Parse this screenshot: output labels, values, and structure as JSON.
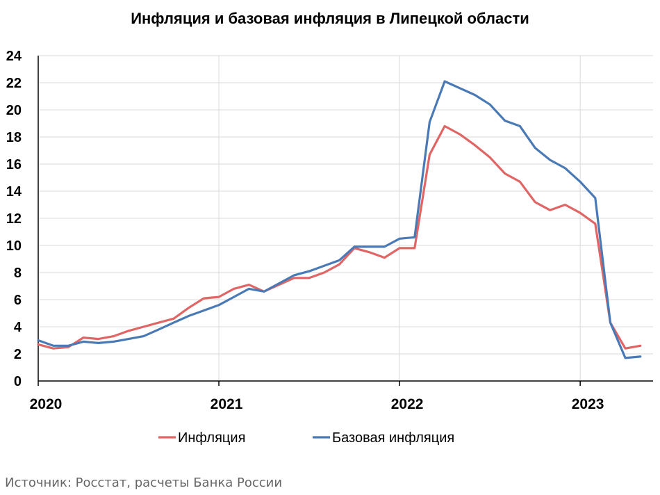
{
  "chart_data": {
    "type": "line",
    "title": "Инфляция и базовая инфляция в Липецкой области",
    "xlabel": "",
    "ylabel": "",
    "ylim": [
      0,
      24
    ],
    "yticks": [
      "0",
      "2",
      "4",
      "6",
      "8",
      "10",
      "12",
      "14",
      "16",
      "18",
      "20",
      "22",
      "24"
    ],
    "x_tick_labels": [
      "2020",
      "2021",
      "2022",
      "2023"
    ],
    "x": [
      "2020-01",
      "2020-02",
      "2020-03",
      "2020-04",
      "2020-05",
      "2020-06",
      "2020-07",
      "2020-08",
      "2020-09",
      "2020-10",
      "2020-11",
      "2020-12",
      "2021-01",
      "2021-02",
      "2021-03",
      "2021-04",
      "2021-05",
      "2021-06",
      "2021-07",
      "2021-08",
      "2021-09",
      "2021-10",
      "2021-11",
      "2021-12",
      "2022-01",
      "2022-02",
      "2022-03",
      "2022-04",
      "2022-05",
      "2022-06",
      "2022-07",
      "2022-08",
      "2022-09",
      "2022-10",
      "2022-11",
      "2022-12",
      "2023-01",
      "2023-02",
      "2023-03",
      "2023-04",
      "2023-05"
    ],
    "grid": true,
    "legend_position": "bottom",
    "series": [
      {
        "name": "Инфляция",
        "color": "#e06666",
        "values": [
          2.7,
          2.4,
          2.5,
          3.2,
          3.1,
          3.3,
          3.7,
          4.0,
          4.3,
          4.6,
          5.4,
          6.1,
          6.2,
          6.8,
          7.1,
          6.6,
          7.1,
          7.6,
          7.6,
          8.0,
          8.6,
          9.8,
          9.5,
          9.1,
          9.8,
          9.8,
          16.7,
          18.8,
          18.2,
          17.4,
          16.5,
          15.3,
          14.7,
          13.2,
          12.6,
          13.0,
          12.4,
          11.6,
          4.3,
          2.4,
          2.6
        ]
      },
      {
        "name": "Базовая инфляция",
        "color": "#4a7ab5",
        "values": [
          3.0,
          2.6,
          2.6,
          2.9,
          2.8,
          2.9,
          3.1,
          3.3,
          3.8,
          4.3,
          4.8,
          5.2,
          5.6,
          6.2,
          6.8,
          6.6,
          7.2,
          7.8,
          8.1,
          8.5,
          8.9,
          9.9,
          9.9,
          9.9,
          10.5,
          10.6,
          19.1,
          22.1,
          21.6,
          21.1,
          20.4,
          19.2,
          18.8,
          17.2,
          16.3,
          15.7,
          14.7,
          13.5,
          4.3,
          1.7,
          1.8
        ]
      }
    ]
  },
  "source_note": "Источник: Росстат, расчеты Банка России"
}
